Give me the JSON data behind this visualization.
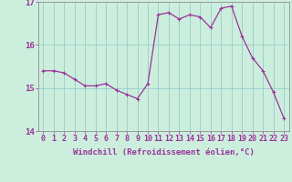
{
  "x": [
    0,
    1,
    2,
    3,
    4,
    5,
    6,
    7,
    8,
    9,
    10,
    11,
    12,
    13,
    14,
    15,
    16,
    17,
    18,
    19,
    20,
    21,
    22,
    23
  ],
  "y": [
    15.4,
    15.4,
    15.35,
    15.2,
    15.05,
    15.05,
    15.1,
    14.95,
    14.85,
    14.75,
    15.1,
    16.7,
    16.75,
    16.6,
    16.7,
    16.65,
    16.4,
    16.85,
    16.9,
    16.2,
    15.7,
    15.4,
    14.9,
    14.3
  ],
  "line_color": "#993399",
  "marker": "+",
  "markersize": 3.5,
  "linewidth": 0.9,
  "background_color": "#cceedd",
  "grid_color": "#99cccc",
  "xlabel": "Windchill (Refroidissement éolien,°C)",
  "ylim": [
    14,
    17
  ],
  "xlim_min": -0.5,
  "xlim_max": 23.5,
  "yticks": [
    14,
    15,
    16,
    17
  ],
  "xticks": [
    0,
    1,
    2,
    3,
    4,
    5,
    6,
    7,
    8,
    9,
    10,
    11,
    12,
    13,
    14,
    15,
    16,
    17,
    18,
    19,
    20,
    21,
    22,
    23
  ],
  "xlabel_fontsize": 6.5,
  "tick_fontsize": 6,
  "label_color": "#993399",
  "spine_color": "#999999"
}
